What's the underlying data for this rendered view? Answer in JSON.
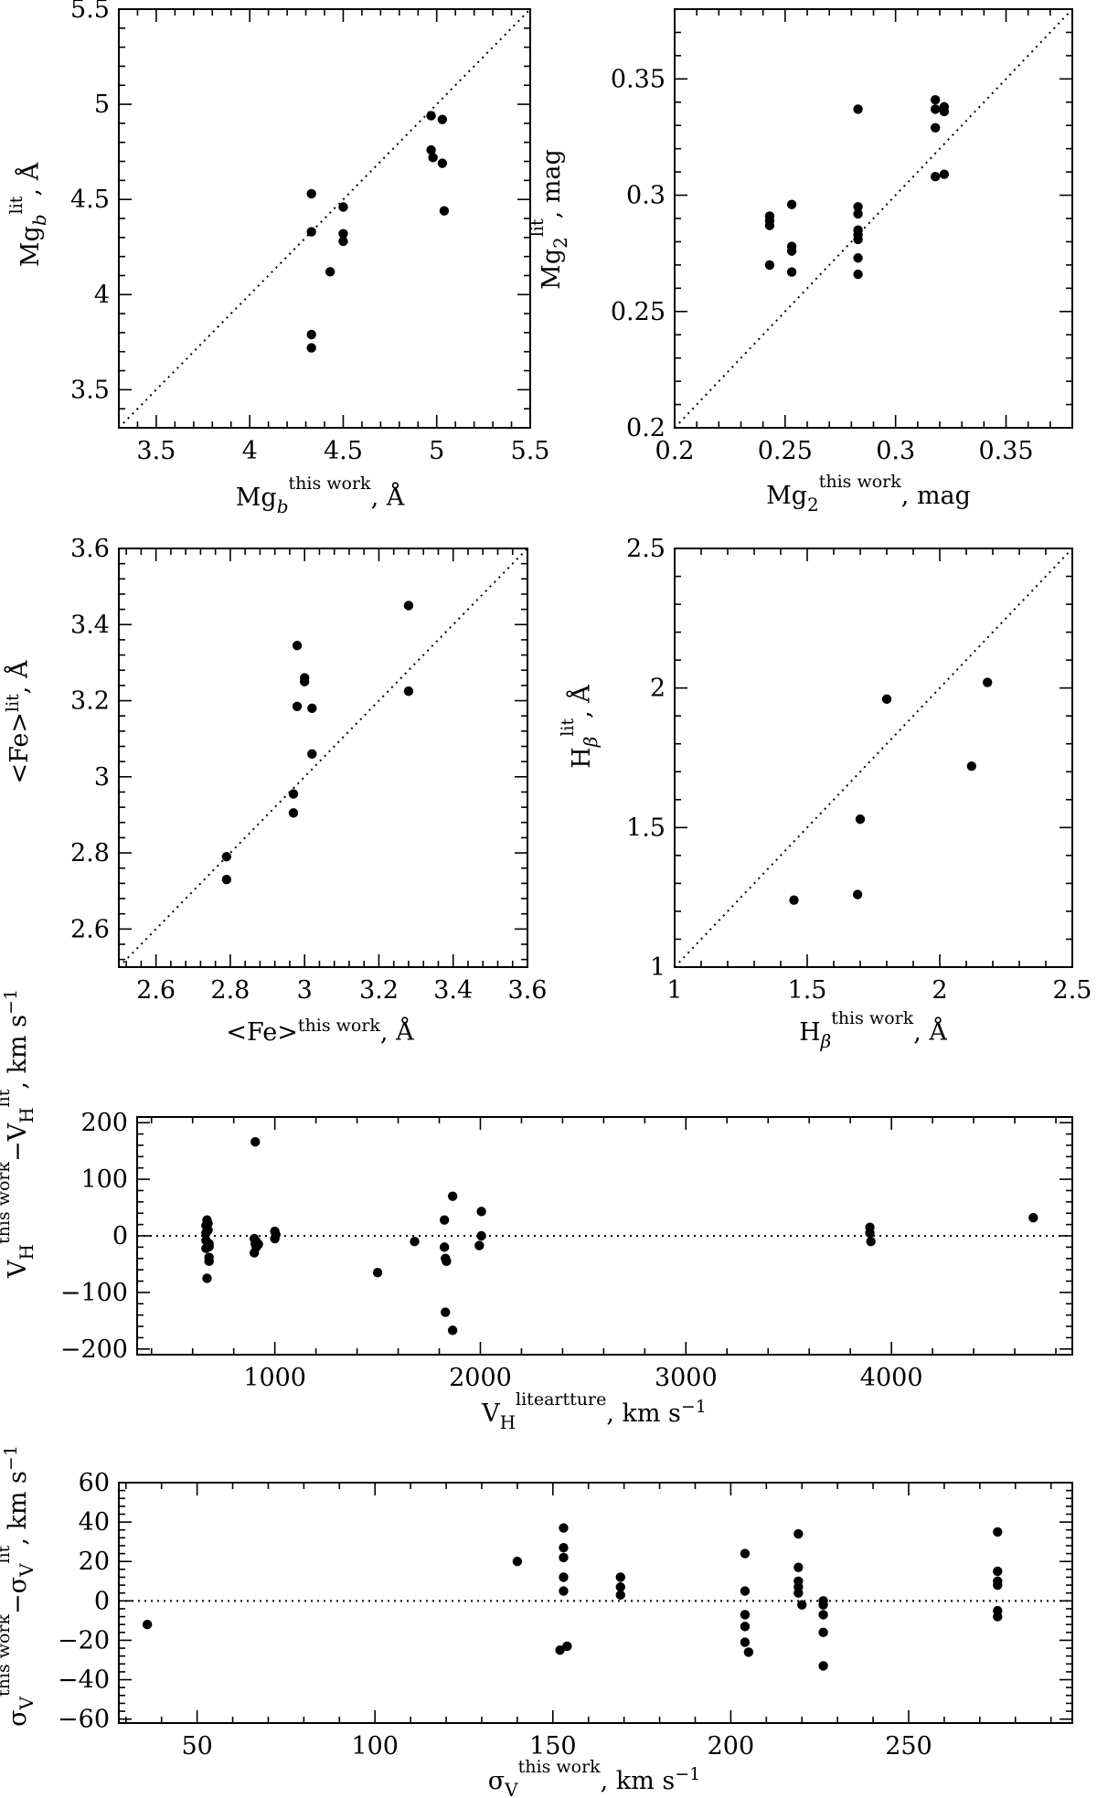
{
  "chart_data": [
    {
      "id": "mgb",
      "type": "scatter",
      "xlabel": "Mg_b^this work, Å",
      "ylabel": "Mg_b^lit, Å",
      "xlim": [
        3.3,
        5.5
      ],
      "ylim": [
        3.3,
        5.5
      ],
      "xticks": [
        3.5,
        4,
        4.5,
        5,
        5.5
      ],
      "yticks": [
        3.5,
        4,
        4.5,
        5,
        5.5
      ],
      "tick_labels": {
        "x": [
          "3.5",
          "4",
          "4.5",
          "5",
          "5.5"
        ],
        "y": [
          "3.5",
          "4",
          "4.5",
          "5",
          "5.5"
        ]
      },
      "reference": "one-to-one",
      "x": [
        4.33,
        4.33,
        4.33,
        4.33,
        4.5,
        4.5,
        4.5,
        4.43,
        4.97,
        4.97,
        4.98,
        5.03,
        5.03,
        5.04
      ],
      "y": [
        4.53,
        4.33,
        3.79,
        3.72,
        4.46,
        4.32,
        4.28,
        4.12,
        4.94,
        4.76,
        4.72,
        4.92,
        4.69,
        4.44
      ]
    },
    {
      "id": "mg2",
      "type": "scatter",
      "xlabel": "Mg_2^this work, mag",
      "ylabel": "Mg_2^lit, mag",
      "xlim": [
        0.2,
        0.38
      ],
      "ylim": [
        0.2,
        0.38
      ],
      "xticks": [
        0.2,
        0.25,
        0.3,
        0.35
      ],
      "yticks": [
        0.2,
        0.25,
        0.3,
        0.35
      ],
      "tick_labels": {
        "x": [
          "0.2",
          "0.25",
          "0.3",
          "0.35"
        ],
        "y": [
          "0.2",
          "0.25",
          "0.3",
          "0.35"
        ]
      },
      "reference": "one-to-one",
      "x": [
        0.243,
        0.243,
        0.243,
        0.243,
        0.253,
        0.253,
        0.253,
        0.253,
        0.283,
        0.283,
        0.283,
        0.283,
        0.283,
        0.283,
        0.283,
        0.283,
        0.318,
        0.318,
        0.318,
        0.318,
        0.322,
        0.322,
        0.322
      ],
      "y": [
        0.291,
        0.289,
        0.287,
        0.27,
        0.296,
        0.278,
        0.276,
        0.267,
        0.337,
        0.295,
        0.292,
        0.285,
        0.283,
        0.281,
        0.273,
        0.266,
        0.341,
        0.337,
        0.329,
        0.308,
        0.338,
        0.336,
        0.309
      ]
    },
    {
      "id": "fe",
      "type": "scatter",
      "xlabel": "<Fe>^this work, Å",
      "ylabel": "<Fe>^lit, Å",
      "xlim": [
        2.5,
        3.6
      ],
      "ylim": [
        2.5,
        3.6
      ],
      "xticks": [
        2.6,
        2.8,
        3,
        3.2,
        3.4,
        3.6
      ],
      "yticks": [
        2.6,
        2.8,
        3,
        3.2,
        3.4,
        3.6
      ],
      "tick_labels": {
        "x": [
          "2.6",
          "2.8",
          "3",
          "3.2",
          "3.4",
          "3.6"
        ],
        "y": [
          "2.6",
          "2.8",
          "3",
          "3.2",
          "3.4",
          "3.6"
        ]
      },
      "reference": "one-to-one",
      "x": [
        2.79,
        2.79,
        2.97,
        2.97,
        2.98,
        2.98,
        3.0,
        3.0,
        3.02,
        3.02,
        3.28,
        3.28
      ],
      "y": [
        2.79,
        2.73,
        2.955,
        2.905,
        3.345,
        3.185,
        3.26,
        3.25,
        3.18,
        3.06,
        3.45,
        3.225
      ]
    },
    {
      "id": "hbeta",
      "type": "scatter",
      "xlabel": "H_β^this work, Å",
      "ylabel": "H_β^lit, Å",
      "xlim": [
        1.0,
        2.5
      ],
      "ylim": [
        1.0,
        2.5
      ],
      "xticks": [
        1,
        1.5,
        2,
        2.5
      ],
      "yticks": [
        1,
        1.5,
        2,
        2.5
      ],
      "tick_labels": {
        "x": [
          "1",
          "1.5",
          "2",
          "2.5"
        ],
        "y": [
          "1",
          "1.5",
          "2",
          "2.5"
        ]
      },
      "reference": "one-to-one",
      "x": [
        1.45,
        1.69,
        1.7,
        1.8,
        2.12,
        2.18
      ],
      "y": [
        1.24,
        1.26,
        1.53,
        1.96,
        1.72,
        2.02
      ]
    },
    {
      "id": "vh",
      "type": "scatter",
      "xlabel": "V_H^liteartture, km s^-1",
      "ylabel": "V_H^this work − V_H^lit, km s^-1",
      "xlim": [
        330,
        4880
      ],
      "ylim": [
        -210,
        210
      ],
      "xticks": [
        1000,
        2000,
        3000,
        4000
      ],
      "yticks": [
        -200,
        -100,
        0,
        100,
        200
      ],
      "tick_labels": {
        "x": [
          "1000",
          "2000",
          "3000",
          "4000"
        ],
        "y": [
          "−200",
          "−100",
          "0",
          "100",
          "200"
        ]
      },
      "reference": "zero",
      "x": [
        665,
        665,
        665,
        665,
        670,
        670,
        675,
        675,
        680,
        680,
        680,
        680,
        900,
        900,
        905,
        905,
        910,
        910,
        920,
        1000,
        1000,
        1005,
        1500,
        1680,
        1825,
        1825,
        1830,
        1830,
        1835,
        1865,
        1865,
        1995,
        2005,
        2005,
        3895,
        3895,
        3900,
        4690
      ],
      "y": [
        18,
        5,
        -8,
        -22,
        -75,
        28,
        22,
        10,
        -14,
        -19,
        -38,
        -45,
        -30,
        -5,
        166,
        -15,
        -20,
        -10,
        -15,
        -5,
        8,
        2,
        -65,
        -10,
        28,
        -20,
        -40,
        -135,
        -45,
        70,
        -167,
        -17,
        43,
        0,
        15,
        5,
        -10,
        32
      ]
    },
    {
      "id": "sigma",
      "type": "scatter",
      "xlabel": "σ_V^this work, km s^-1",
      "ylabel": "σ_V^this work − σ_V^lit, km s^-1",
      "xlim": [
        28,
        296
      ],
      "ylim": [
        -62,
        60
      ],
      "xticks": [
        50,
        100,
        150,
        200,
        250
      ],
      "yticks": [
        -60,
        -40,
        -20,
        0,
        20,
        40,
        60
      ],
      "tick_labels": {
        "x": [
          "50",
          "100",
          "150",
          "200",
          "250"
        ],
        "y": [
          "−60",
          "−40",
          "−20",
          "0",
          "20",
          "40",
          "60"
        ]
      },
      "reference": "zero",
      "x": [
        36,
        140,
        152,
        153,
        153,
        153,
        153,
        153,
        154,
        169,
        169,
        169,
        204,
        204,
        204,
        204,
        204,
        205,
        219,
        219,
        219,
        219,
        219,
        220,
        226,
        226,
        226,
        226,
        226,
        275,
        275,
        275,
        275,
        275,
        275
      ],
      "y": [
        -12,
        20,
        -25,
        37,
        27,
        22,
        12,
        5,
        -23,
        12,
        7,
        3,
        24,
        5,
        -7,
        -13,
        -21,
        -26,
        34,
        17,
        10,
        7,
        4,
        -2,
        0,
        -2,
        -7,
        -16,
        -33,
        35,
        15,
        10,
        8,
        -5,
        -8
      ]
    }
  ]
}
